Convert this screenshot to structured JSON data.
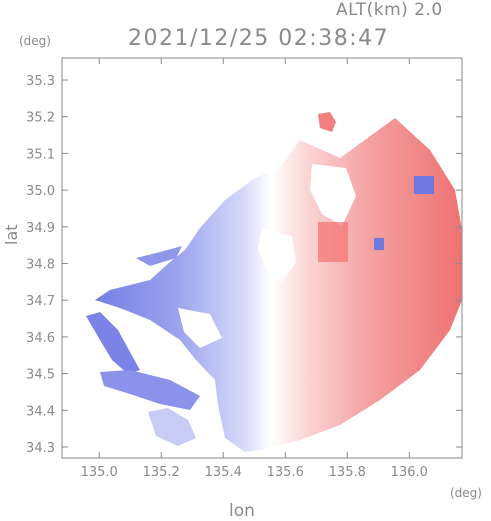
{
  "header": {
    "altitude": "ALT(km) 2.0",
    "timestamp": "2021/12/25 02:38:47"
  },
  "chart_data": {
    "type": "heatmap",
    "title": "2021/12/25 02:38:47",
    "subtitle": "ALT(km) 2.0",
    "xlabel": "lon",
    "ylabel": "lat",
    "x_unit": "(deg)",
    "y_unit": "(deg)",
    "xlim": [
      134.88,
      136.17
    ],
    "ylim": [
      34.27,
      35.36
    ],
    "x_ticks": [
      135.0,
      135.2,
      135.4,
      135.6,
      135.8,
      136.0
    ],
    "x_tick_labels": [
      "135.0",
      "135.2",
      "135.4",
      "135.6",
      "135.8",
      "136.0"
    ],
    "y_ticks": [
      34.3,
      34.4,
      34.5,
      34.6,
      34.7,
      34.8,
      34.9,
      35.0,
      35.1,
      35.2,
      35.3
    ],
    "y_tick_labels": [
      "34.3",
      "34.4",
      "34.5",
      "34.6",
      "34.7",
      "34.8",
      "34.9",
      "35.0",
      "35.1",
      "35.2",
      "35.3"
    ],
    "grid": false,
    "colormap": {
      "negative": "#6f78e0",
      "zero": "#ffffff",
      "positive": "#f06a6a"
    }
  }
}
